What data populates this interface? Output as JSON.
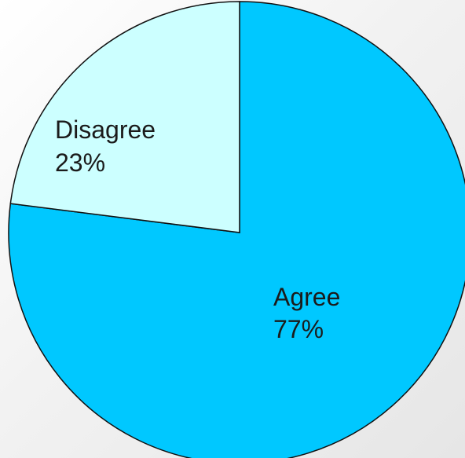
{
  "chart_data": {
    "type": "pie",
    "slices": [
      {
        "label": "Agree",
        "value": 77,
        "value_label": "77%",
        "color": "#00c8ff"
      },
      {
        "label": "Disagree",
        "value": 23,
        "value_label": "23%",
        "color": "#ccffff"
      }
    ],
    "outline_color": "#111111",
    "start_angle": "top (12 o'clock), clockwise"
  }
}
